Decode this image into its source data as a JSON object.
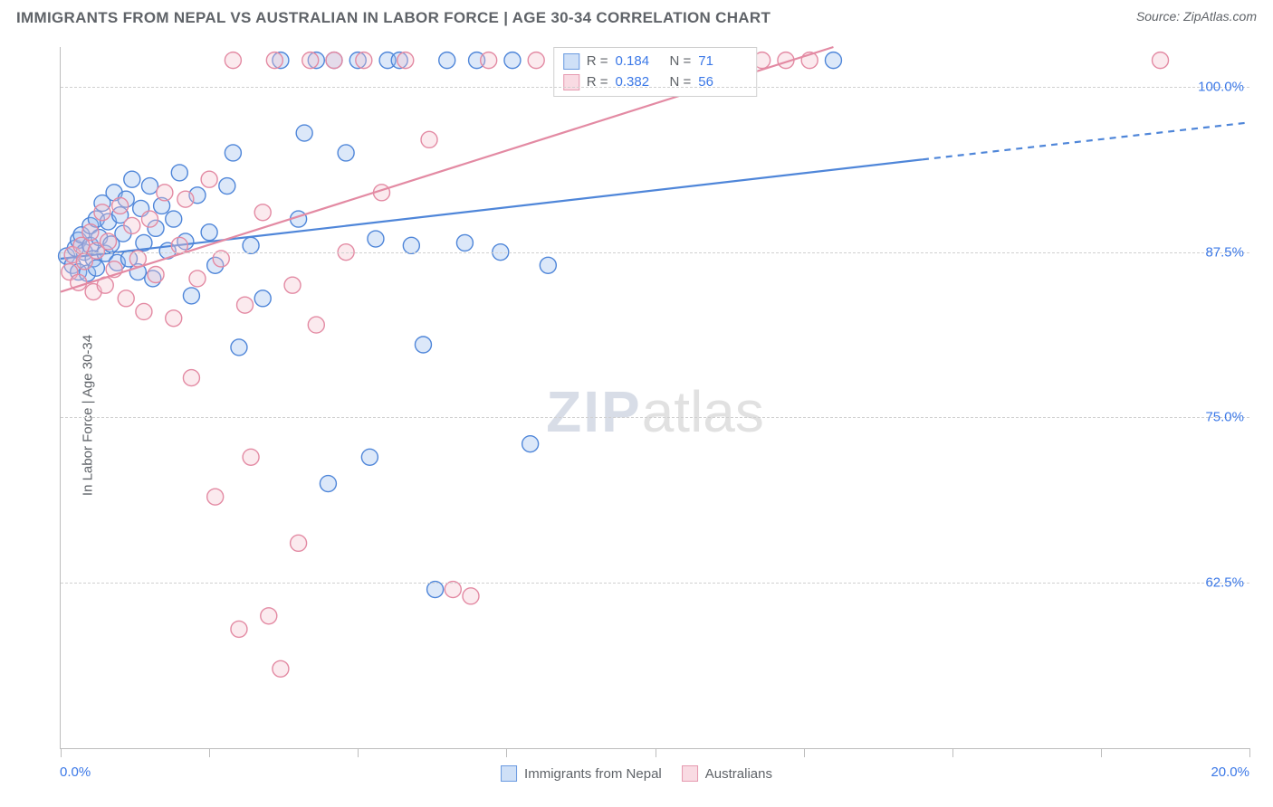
{
  "header": {
    "title": "IMMIGRANTS FROM NEPAL VS AUSTRALIAN IN LABOR FORCE | AGE 30-34 CORRELATION CHART",
    "source_prefix": "Source: ",
    "source": "ZipAtlas.com"
  },
  "watermark": {
    "part1": "ZIP",
    "part2": "atlas"
  },
  "chart": {
    "type": "scatter",
    "ylabel": "In Labor Force | Age 30-34",
    "xlim": [
      0.0,
      20.0
    ],
    "ylim": [
      50.0,
      103.0
    ],
    "x_tick_step": 2.5,
    "y_ticks": [
      62.5,
      75.0,
      87.5,
      100.0
    ],
    "y_tick_labels": [
      "62.5%",
      "75.0%",
      "87.5%",
      "100.0%"
    ],
    "x_min_label": "0.0%",
    "x_max_label": "20.0%",
    "background_color": "#ffffff",
    "grid_color": "#d0d0d0",
    "axis_color": "#bdbdbd",
    "marker_radius": 9,
    "marker_stroke_width": 1.4,
    "marker_fill_opacity": 0.35,
    "trend_line_width": 2.2,
    "series": [
      {
        "id": "nepal",
        "label": "Immigrants from Nepal",
        "color_stroke": "#4f86d9",
        "color_fill": "#9cbdee",
        "swatch_fill": "#cfe0f7",
        "swatch_border": "#6a9ae0",
        "R": 0.184,
        "N": 71,
        "trend_solid": {
          "x1": 0.0,
          "y1": 87.0,
          "x2": 14.5,
          "y2": 94.5
        },
        "trend_dashed": {
          "x1": 14.5,
          "y1": 94.5,
          "x2": 20.0,
          "y2": 97.3
        },
        "points": [
          [
            0.1,
            87.2
          ],
          [
            0.2,
            86.5
          ],
          [
            0.25,
            87.8
          ],
          [
            0.3,
            88.4
          ],
          [
            0.3,
            86.0
          ],
          [
            0.35,
            88.8
          ],
          [
            0.4,
            87.5
          ],
          [
            0.45,
            85.9
          ],
          [
            0.5,
            88.0
          ],
          [
            0.5,
            89.5
          ],
          [
            0.55,
            87.0
          ],
          [
            0.6,
            90.0
          ],
          [
            0.6,
            86.3
          ],
          [
            0.65,
            88.6
          ],
          [
            0.7,
            91.2
          ],
          [
            0.75,
            87.4
          ],
          [
            0.8,
            89.8
          ],
          [
            0.85,
            88.1
          ],
          [
            0.9,
            92.0
          ],
          [
            0.95,
            86.7
          ],
          [
            1.0,
            90.3
          ],
          [
            1.05,
            88.9
          ],
          [
            1.1,
            91.5
          ],
          [
            1.15,
            87.0
          ],
          [
            1.2,
            93.0
          ],
          [
            1.3,
            86.0
          ],
          [
            1.35,
            90.8
          ],
          [
            1.4,
            88.2
          ],
          [
            1.5,
            92.5
          ],
          [
            1.55,
            85.5
          ],
          [
            1.6,
            89.3
          ],
          [
            1.7,
            91.0
          ],
          [
            1.8,
            87.6
          ],
          [
            1.9,
            90.0
          ],
          [
            2.0,
            93.5
          ],
          [
            2.1,
            88.3
          ],
          [
            2.2,
            84.2
          ],
          [
            2.3,
            91.8
          ],
          [
            2.5,
            89.0
          ],
          [
            2.6,
            86.5
          ],
          [
            2.8,
            92.5
          ],
          [
            2.9,
            95.0
          ],
          [
            3.0,
            80.3
          ],
          [
            3.2,
            88.0
          ],
          [
            3.4,
            84.0
          ],
          [
            3.7,
            102.0
          ],
          [
            4.0,
            90.0
          ],
          [
            4.1,
            96.5
          ],
          [
            4.3,
            102.0
          ],
          [
            4.5,
            70.0
          ],
          [
            4.6,
            102.0
          ],
          [
            4.8,
            95.0
          ],
          [
            5.0,
            102.0
          ],
          [
            5.2,
            72.0
          ],
          [
            5.3,
            88.5
          ],
          [
            5.5,
            102.0
          ],
          [
            5.7,
            102.0
          ],
          [
            5.9,
            88.0
          ],
          [
            6.1,
            80.5
          ],
          [
            6.3,
            62.0
          ],
          [
            6.5,
            102.0
          ],
          [
            6.8,
            88.2
          ],
          [
            7.0,
            102.0
          ],
          [
            7.4,
            87.5
          ],
          [
            7.6,
            102.0
          ],
          [
            7.9,
            73.0
          ],
          [
            8.2,
            86.5
          ],
          [
            8.5,
            102.0
          ],
          [
            9.0,
            102.0
          ],
          [
            9.5,
            102.0
          ],
          [
            13.0,
            102.0
          ]
        ]
      },
      {
        "id": "australians",
        "label": "Australians",
        "color_stroke": "#e38aa3",
        "color_fill": "#f3c2cf",
        "swatch_fill": "#f9dbe3",
        "swatch_border": "#e69ab0",
        "R": 0.382,
        "N": 56,
        "trend_solid": {
          "x1": 0.0,
          "y1": 84.5,
          "x2": 13.0,
          "y2": 103.0
        },
        "trend_dashed": null,
        "points": [
          [
            0.15,
            86.0
          ],
          [
            0.2,
            87.3
          ],
          [
            0.3,
            85.2
          ],
          [
            0.35,
            88.0
          ],
          [
            0.4,
            86.8
          ],
          [
            0.5,
            89.0
          ],
          [
            0.55,
            84.5
          ],
          [
            0.6,
            87.6
          ],
          [
            0.7,
            90.5
          ],
          [
            0.75,
            85.0
          ],
          [
            0.8,
            88.3
          ],
          [
            0.9,
            86.2
          ],
          [
            1.0,
            91.0
          ],
          [
            1.1,
            84.0
          ],
          [
            1.2,
            89.5
          ],
          [
            1.3,
            87.0
          ],
          [
            1.4,
            83.0
          ],
          [
            1.5,
            90.0
          ],
          [
            1.6,
            85.8
          ],
          [
            1.75,
            92.0
          ],
          [
            1.9,
            82.5
          ],
          [
            2.0,
            88.0
          ],
          [
            2.1,
            91.5
          ],
          [
            2.2,
            78.0
          ],
          [
            2.3,
            85.5
          ],
          [
            2.5,
            93.0
          ],
          [
            2.6,
            69.0
          ],
          [
            2.7,
            87.0
          ],
          [
            2.9,
            102.0
          ],
          [
            3.0,
            59.0
          ],
          [
            3.1,
            83.5
          ],
          [
            3.2,
            72.0
          ],
          [
            3.4,
            90.5
          ],
          [
            3.5,
            60.0
          ],
          [
            3.6,
            102.0
          ],
          [
            3.7,
            56.0
          ],
          [
            3.9,
            85.0
          ],
          [
            4.0,
            65.5
          ],
          [
            4.2,
            102.0
          ],
          [
            4.3,
            82.0
          ],
          [
            4.6,
            102.0
          ],
          [
            4.8,
            87.5
          ],
          [
            5.1,
            102.0
          ],
          [
            5.4,
            92.0
          ],
          [
            5.8,
            102.0
          ],
          [
            6.2,
            96.0
          ],
          [
            6.6,
            62.0
          ],
          [
            6.9,
            61.5
          ],
          [
            7.2,
            102.0
          ],
          [
            8.0,
            102.0
          ],
          [
            10.4,
            102.0
          ],
          [
            10.8,
            102.0
          ],
          [
            11.8,
            102.0
          ],
          [
            12.2,
            102.0
          ],
          [
            12.6,
            102.0
          ],
          [
            18.5,
            102.0
          ]
        ]
      }
    ]
  },
  "legend_top": {
    "R_label": "R  =",
    "N_label": "N  ="
  }
}
